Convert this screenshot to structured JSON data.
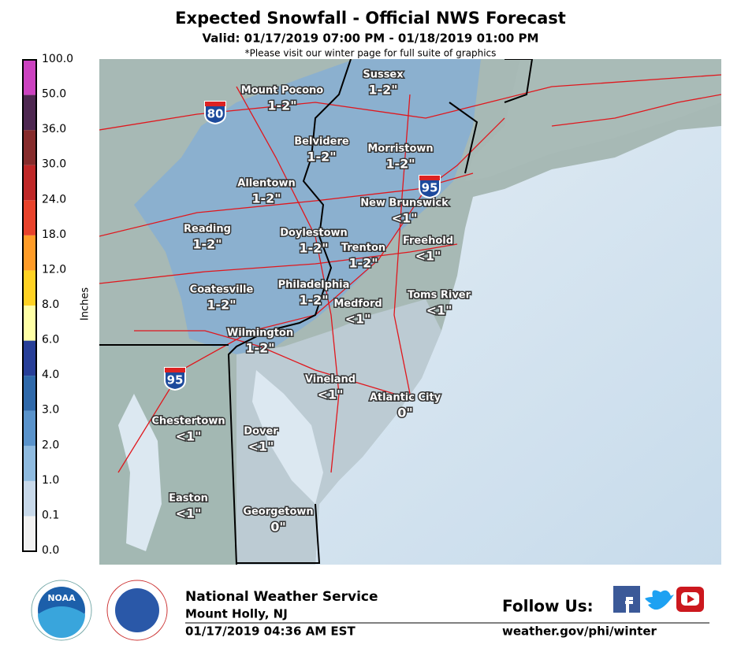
{
  "header": {
    "title": "Expected Snowfall - Official NWS Forecast",
    "subtitle": "Valid: 01/17/2019 07:00 PM - 01/18/2019 01:00 PM",
    "note": "*Please visit our winter page for full suite of graphics"
  },
  "legend": {
    "axis_label": "Inches",
    "levels": [
      "0.0",
      "0.1",
      "1.0",
      "2.0",
      "3.0",
      "4.0",
      "6.0",
      "8.0",
      "12.0",
      "18.0",
      "24.0",
      "30.0",
      "36.0",
      "50.0",
      "100.0"
    ],
    "colors": [
      "#f2f2f2",
      "#c8d9ea",
      "#8fbbe0",
      "#5a93cb",
      "#2f69aa",
      "#283f98",
      "#ffffa6",
      "#ffd224",
      "#ff9c28",
      "#e8432c",
      "#bf2828",
      "#862c2c",
      "#4e2851",
      "#cc42c0"
    ]
  },
  "map": {
    "shields": [
      "80",
      "95",
      "95"
    ],
    "cities": [
      {
        "name": "Sussex",
        "amount": "1-2\""
      },
      {
        "name": "Mount Pocono",
        "amount": "1-2\""
      },
      {
        "name": "Belvidere",
        "amount": "1-2\""
      },
      {
        "name": "Morristown",
        "amount": "1-2\""
      },
      {
        "name": "Allentown",
        "amount": "1-2\""
      },
      {
        "name": "New Brunswick",
        "amount": "<1\""
      },
      {
        "name": "Reading",
        "amount": "1-2\""
      },
      {
        "name": "Doylestown",
        "amount": "1-2\""
      },
      {
        "name": "Freehold",
        "amount": "<1\""
      },
      {
        "name": "Trenton",
        "amount": "1-2\""
      },
      {
        "name": "Philadelphia",
        "amount": "1-2\""
      },
      {
        "name": "Coatesville",
        "amount": "1-2\""
      },
      {
        "name": "Medford",
        "amount": "<1\""
      },
      {
        "name": "Toms River",
        "amount": "<1\""
      },
      {
        "name": "Wilmington",
        "amount": "1-2\""
      },
      {
        "name": "Vineland",
        "amount": "<1\""
      },
      {
        "name": "Atlantic City",
        "amount": "0\""
      },
      {
        "name": "Chestertown",
        "amount": "<1\""
      },
      {
        "name": "Dover",
        "amount": "<1\""
      },
      {
        "name": "Easton",
        "amount": "<1\""
      },
      {
        "name": "Georgetown",
        "amount": "0\""
      }
    ]
  },
  "footer": {
    "office": "National Weather Service",
    "location": "Mount Holly, NJ",
    "issued": "01/17/2019 04:36 AM EST",
    "follow": "Follow Us:",
    "url": "weather.gov/phi/winter",
    "noaa": "NOAA"
  }
}
